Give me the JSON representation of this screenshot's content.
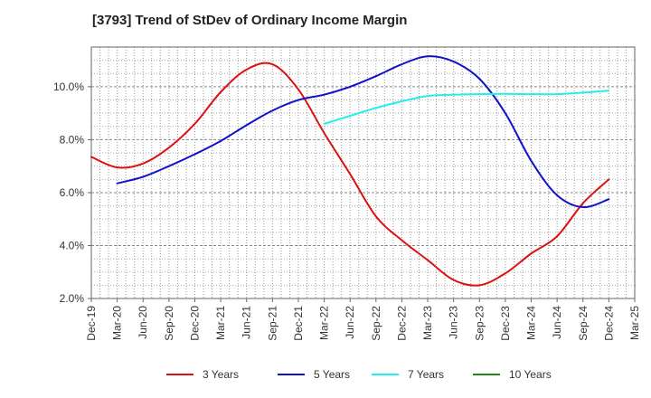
{
  "chart_data": {
    "type": "line",
    "title": "[3793]  Trend of StDev of Ordinary Income Margin",
    "xlabel": "",
    "ylabel": "",
    "x_ticks": [
      "Dec-19",
      "Mar-20",
      "Jun-20",
      "Sep-20",
      "Dec-20",
      "Mar-21",
      "Jun-21",
      "Sep-21",
      "Dec-21",
      "Mar-22",
      "Jun-22",
      "Sep-22",
      "Dec-22",
      "Mar-23",
      "Jun-23",
      "Sep-23",
      "Dec-23",
      "Mar-24",
      "Jun-24",
      "Sep-24",
      "Dec-24",
      "Mar-25"
    ],
    "y_ticks": [
      "2.0%",
      "4.0%",
      "6.0%",
      "8.0%",
      "10.0%"
    ],
    "ylim": [
      2.0,
      11.5
    ],
    "y_unit": "%",
    "grid": true,
    "legend_position": "bottom",
    "series": [
      {
        "name": "3 Years",
        "color": "#dd1111",
        "x": [
          "Dec-19",
          "Mar-20",
          "Jun-20",
          "Sep-20",
          "Dec-20",
          "Mar-21",
          "Jun-21",
          "Sep-21",
          "Dec-21",
          "Mar-22",
          "Jun-22",
          "Sep-22",
          "Dec-22",
          "Mar-23",
          "Jun-23",
          "Sep-23",
          "Dec-23",
          "Mar-24",
          "Jun-24",
          "Sep-24",
          "Dec-24"
        ],
        "values": [
          7.35,
          6.95,
          7.1,
          7.7,
          8.6,
          9.8,
          10.65,
          10.85,
          9.9,
          8.25,
          6.7,
          5.1,
          4.2,
          3.45,
          2.7,
          2.5,
          2.95,
          3.7,
          4.35,
          5.6,
          6.5
        ]
      },
      {
        "name": "5 Years",
        "color": "#1111cc",
        "x": [
          "Mar-20",
          "Jun-20",
          "Sep-20",
          "Dec-20",
          "Mar-21",
          "Jun-21",
          "Sep-21",
          "Dec-21",
          "Mar-22",
          "Jun-22",
          "Sep-22",
          "Dec-22",
          "Mar-23",
          "Jun-23",
          "Sep-23",
          "Dec-23",
          "Mar-24",
          "Jun-24",
          "Sep-24",
          "Dec-24"
        ],
        "values": [
          6.35,
          6.6,
          7.0,
          7.45,
          7.95,
          8.55,
          9.1,
          9.5,
          9.7,
          10.0,
          10.4,
          10.85,
          11.15,
          10.95,
          10.3,
          9.0,
          7.2,
          5.9,
          5.45,
          5.75
        ]
      },
      {
        "name": "7 Years",
        "color": "#22eeee",
        "x": [
          "Mar-22",
          "Jun-22",
          "Sep-22",
          "Dec-22",
          "Mar-23",
          "Jun-23",
          "Sep-23",
          "Dec-23",
          "Mar-24",
          "Jun-24",
          "Sep-24",
          "Dec-24"
        ],
        "values": [
          8.6,
          8.9,
          9.2,
          9.45,
          9.65,
          9.7,
          9.72,
          9.73,
          9.72,
          9.72,
          9.78,
          9.85
        ]
      },
      {
        "name": "10 Years",
        "color": "#22881a",
        "x": [],
        "values": []
      }
    ]
  }
}
